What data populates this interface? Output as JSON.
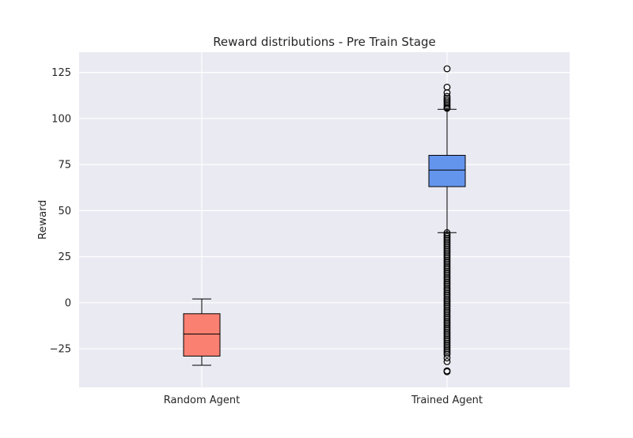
{
  "chart_data": {
    "type": "box",
    "title": "Reward distributions - Pre Train Stage",
    "xlabel": "",
    "ylabel": "Reward",
    "ylim": [
      -46,
      136
    ],
    "yticks": [
      -25,
      0,
      25,
      50,
      75,
      100,
      125
    ],
    "grid": true,
    "categories": [
      "Random Agent",
      "Trained Agent"
    ],
    "boxes": [
      {
        "name": "Random Agent",
        "color": "#fa8072",
        "whisker_low": -34,
        "q1": -29,
        "median": -17,
        "q3": -6,
        "whisker_high": 2,
        "outliers": []
      },
      {
        "name": "Trained Agent",
        "color": "#6495ed",
        "whisker_low": 38,
        "q1": 63,
        "median": 72,
        "q3": 80,
        "whisker_high": 105,
        "outliers": [
          127,
          117,
          114,
          112,
          111,
          110,
          109,
          108,
          107,
          106,
          105.5,
          38,
          37,
          36,
          35,
          34,
          33,
          32,
          31,
          30,
          29,
          28,
          27,
          26,
          25,
          24,
          23,
          22,
          21,
          20,
          19,
          18,
          17,
          16,
          15,
          14,
          13,
          12,
          11,
          10,
          9,
          8,
          7,
          6,
          5,
          4,
          3,
          2,
          1,
          0,
          -1,
          -2,
          -3,
          -4,
          -5,
          -6,
          -7,
          -8,
          -9,
          -10,
          -11,
          -12,
          -13,
          -14,
          -15,
          -16,
          -17,
          -18,
          -19,
          -20,
          -21,
          -22,
          -23,
          -24,
          -25,
          -26,
          -27,
          -28,
          -30,
          -32,
          -37,
          -37.5
        ]
      }
    ]
  }
}
